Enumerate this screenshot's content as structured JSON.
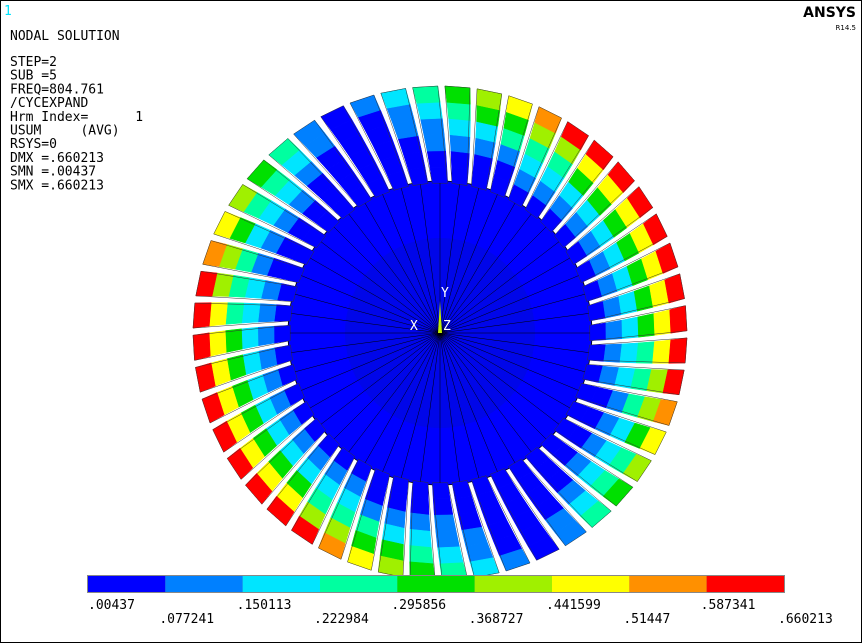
{
  "viewport_number": "1",
  "title": "NODAL SOLUTION",
  "info_lines": [
    "STEP=2",
    "SUB =5",
    "FREQ=804.761",
    "/CYCEXPAND",
    "Hrm Index=      1",
    "USUM     (AVG)",
    "RSYS=0",
    "DMX =.660213",
    "SMN =.00437",
    "SMX =.660213"
  ],
  "brand": "ANSYS",
  "version": "R14.5",
  "triad": {
    "y": "Y",
    "x": "X",
    "z": "Z"
  },
  "legend": {
    "colors": [
      "#0000ff",
      "#0080ff",
      "#00e5ff",
      "#00ffa0",
      "#00e000",
      "#a0f000",
      "#ffff00",
      "#ff9000",
      "#ff0000"
    ],
    "labels": [
      ".00437",
      ".077241",
      ".150113",
      ".222984",
      ".295856",
      ".368727",
      ".441599",
      ".51447",
      ".587341",
      ".660213"
    ]
  }
}
